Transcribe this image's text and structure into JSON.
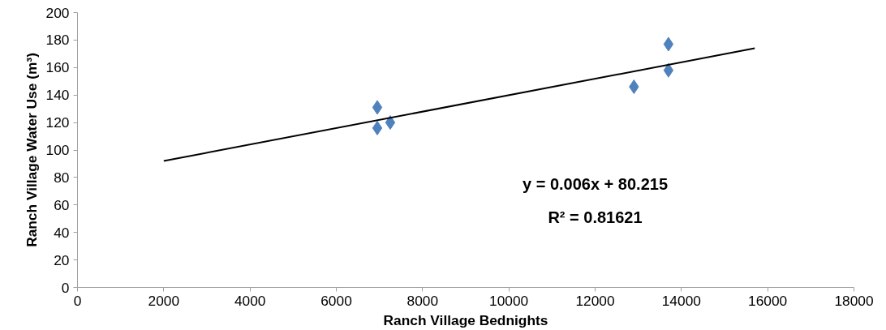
{
  "chart_data": {
    "type": "scatter",
    "xlabel": "Ranch Village Bednights",
    "ylabel": "Ranch Village Water Use (m³)",
    "xlim": [
      0,
      18000
    ],
    "xticks": [
      0,
      2000,
      4000,
      6000,
      8000,
      10000,
      12000,
      14000,
      16000,
      18000
    ],
    "ylim": [
      0,
      200
    ],
    "yticks": [
      0,
      20,
      40,
      60,
      80,
      100,
      120,
      140,
      160,
      180,
      200
    ],
    "series": [
      {
        "color": "#4f81bd",
        "marker": "diamond",
        "x": [
          6950,
          6950,
          7250,
          12900,
          13700,
          13700
        ],
        "values": [
          131,
          116,
          120,
          146,
          177,
          158
        ]
      },
      {
        "type": "line",
        "color": "#000000",
        "x": [
          2000,
          15700
        ],
        "values": [
          92,
          174
        ],
        "line_style": "solid"
      }
    ],
    "annotations": [
      "y = 0.006x + 80.215",
      "R² = 0.81621"
    ]
  }
}
